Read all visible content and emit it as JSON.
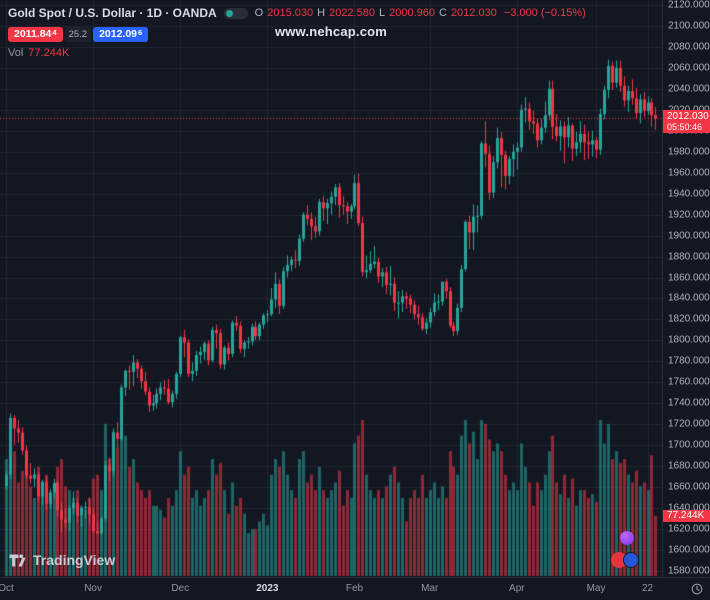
{
  "header": {
    "symbol_title": "Gold Spot / U.S. Dollar · 1D · OANDA",
    "ohlc": {
      "o_label": "O",
      "o": "2015.030",
      "h_label": "H",
      "h": "2022.580",
      "l_label": "L",
      "l": "2000.960",
      "c_label": "C",
      "c": "2012.030",
      "change": "−3.000 (−0.15%)"
    },
    "trade": {
      "sell_main": "2011.84",
      "sell_sup": "4",
      "spread": "25.2",
      "buy_main": "2012.09",
      "buy_sup": "6"
    },
    "volume_row": {
      "label": "Vol",
      "value": "77.244K"
    }
  },
  "watermark": "www.nehcap.com",
  "branding": {
    "logo_text": "TradingView"
  },
  "price_axis": {
    "labels": [
      "2120.000",
      "2100.000",
      "2080.000",
      "2060.000",
      "2040.000",
      "2020.000",
      "2000.000",
      "1980.000",
      "1960.000",
      "1940.000",
      "1920.000",
      "1900.000",
      "1880.000",
      "1860.000",
      "1840.000",
      "1820.000",
      "1800.000",
      "1780.000",
      "1760.000",
      "1740.000",
      "1720.000",
      "1700.000",
      "1680.000",
      "1660.000",
      "1640.000",
      "1620.000",
      "1600.000",
      "1580.000"
    ],
    "current_price": "2012.030",
    "countdown": "05:50:46",
    "volume_label": "77.244K"
  },
  "time_axis": {
    "labels": [
      {
        "text": "Oct",
        "index": 0,
        "major": false
      },
      {
        "text": "Nov",
        "index": 22,
        "major": false
      },
      {
        "text": "Dec",
        "index": 44,
        "major": false
      },
      {
        "text": "2023",
        "index": 66,
        "major": true
      },
      {
        "text": "Feb",
        "index": 88,
        "major": false
      },
      {
        "text": "Mar",
        "index": 107,
        "major": false
      },
      {
        "text": "Apr",
        "index": 129,
        "major": false
      },
      {
        "text": "May",
        "index": 149,
        "major": false
      },
      {
        "text": "22",
        "index": 162,
        "major": false
      }
    ]
  },
  "chart_data": {
    "type": "candlestick",
    "title": "Gold Spot / U.S. Dollar",
    "symbol": "XAUUSD",
    "exchange": "OANDA",
    "timeframe": "1D",
    "x_range": "Oct 2022 – May 2023",
    "ylim": [
      1580,
      2120
    ],
    "price_gridlines": [
      2120,
      2100,
      2080,
      2060,
      2040,
      2020,
      2000,
      1980,
      1960,
      1940,
      1920,
      1900,
      1880,
      1860,
      1840,
      1820,
      1800,
      1780,
      1760,
      1740,
      1720,
      1700,
      1680,
      1660,
      1640,
      1620,
      1600,
      1580
    ],
    "last_price": 2012.03,
    "last_volume_k": 77.244,
    "ohlc_last": {
      "open": 2015.03,
      "high": 2022.58,
      "low": 2000.96,
      "close": 2012.03,
      "change": -3.0,
      "change_pct": -0.15
    },
    "colors": {
      "background": "#131722",
      "up": "#26a69a",
      "down": "#f23645",
      "vol_up": "rgba(38,166,154,0.55)",
      "vol_down": "rgba(242,54,69,0.55)",
      "grid": "rgba(54,58,69,0.45)",
      "last_price_line": "#f23645",
      "buy": "#2962ff",
      "sell": "#f23645"
    },
    "columns": [
      "open",
      "high",
      "low",
      "close",
      "volume_k"
    ],
    "candles": [
      [
        1661,
        1675,
        1658,
        1672,
        150
      ],
      [
        1672,
        1730,
        1668,
        1726,
        185
      ],
      [
        1726,
        1729,
        1700,
        1716,
        160
      ],
      [
        1716,
        1724,
        1702,
        1712,
        120
      ],
      [
        1712,
        1717,
        1691,
        1695,
        135
      ],
      [
        1695,
        1700,
        1668,
        1671,
        150
      ],
      [
        1671,
        1683,
        1663,
        1668,
        115
      ],
      [
        1668,
        1678,
        1660,
        1672,
        100
      ],
      [
        1672,
        1674,
        1646,
        1651,
        140
      ],
      [
        1651,
        1667,
        1643,
        1665,
        120
      ],
      [
        1665,
        1670,
        1638,
        1644,
        130
      ],
      [
        1644,
        1658,
        1640,
        1655,
        105
      ],
      [
        1655,
        1668,
        1649,
        1664,
        110
      ],
      [
        1664,
        1666,
        1632,
        1638,
        140
      ],
      [
        1638,
        1645,
        1617,
        1629,
        150
      ],
      [
        1629,
        1640,
        1621,
        1626,
        115
      ],
      [
        1626,
        1642,
        1618,
        1640,
        110
      ],
      [
        1640,
        1656,
        1634,
        1645,
        100
      ],
      [
        1645,
        1650,
        1626,
        1633,
        110
      ],
      [
        1633,
        1641,
        1622,
        1640,
        90
      ],
      [
        1640,
        1646,
        1630,
        1641,
        85
      ],
      [
        1641,
        1650,
        1625,
        1634,
        100
      ],
      [
        1634,
        1640,
        1616,
        1618,
        125
      ],
      [
        1618,
        1628,
        1615,
        1616,
        130
      ],
      [
        1616,
        1632,
        1614,
        1630,
        110
      ],
      [
        1630,
        1685,
        1628,
        1681,
        195
      ],
      [
        1681,
        1688,
        1666,
        1675,
        150
      ],
      [
        1675,
        1716,
        1670,
        1712,
        185
      ],
      [
        1712,
        1722,
        1698,
        1706,
        165
      ],
      [
        1706,
        1758,
        1704,
        1755,
        200
      ],
      [
        1755,
        1772,
        1747,
        1771,
        180
      ],
      [
        1771,
        1776,
        1753,
        1770,
        140
      ],
      [
        1770,
        1786,
        1756,
        1779,
        150
      ],
      [
        1779,
        1782,
        1764,
        1773,
        120
      ],
      [
        1773,
        1776,
        1754,
        1761,
        110
      ],
      [
        1761,
        1770,
        1748,
        1751,
        100
      ],
      [
        1751,
        1755,
        1732,
        1738,
        110
      ],
      [
        1738,
        1748,
        1733,
        1740,
        90
      ],
      [
        1740,
        1754,
        1735,
        1749,
        90
      ],
      [
        1749,
        1760,
        1743,
        1755,
        85
      ],
      [
        1755,
        1762,
        1748,
        1754,
        75
      ],
      [
        1754,
        1763,
        1739,
        1741,
        100
      ],
      [
        1741,
        1752,
        1736,
        1749,
        90
      ],
      [
        1749,
        1770,
        1744,
        1768,
        110
      ],
      [
        1768,
        1804,
        1765,
        1803,
        160
      ],
      [
        1803,
        1810,
        1784,
        1798,
        130
      ],
      [
        1798,
        1801,
        1765,
        1768,
        140
      ],
      [
        1768,
        1779,
        1761,
        1771,
        100
      ],
      [
        1771,
        1790,
        1766,
        1786,
        110
      ],
      [
        1786,
        1794,
        1778,
        1789,
        90
      ],
      [
        1789,
        1799,
        1781,
        1797,
        100
      ],
      [
        1797,
        1800,
        1776,
        1781,
        110
      ],
      [
        1781,
        1813,
        1779,
        1810,
        150
      ],
      [
        1810,
        1815,
        1792,
        1807,
        130
      ],
      [
        1807,
        1811,
        1773,
        1777,
        145
      ],
      [
        1777,
        1795,
        1772,
        1793,
        110
      ],
      [
        1793,
        1798,
        1781,
        1787,
        80
      ],
      [
        1787,
        1819,
        1784,
        1817,
        120
      ],
      [
        1817,
        1823,
        1809,
        1814,
        90
      ],
      [
        1814,
        1818,
        1788,
        1792,
        100
      ],
      [
        1792,
        1800,
        1784,
        1798,
        80
      ],
      [
        1798,
        1803,
        1792,
        1799,
        55
      ],
      [
        1799,
        1816,
        1795,
        1813,
        60
      ],
      [
        1813,
        1818,
        1800,
        1804,
        60
      ],
      [
        1804,
        1817,
        1800,
        1815,
        70
      ],
      [
        1815,
        1826,
        1811,
        1824,
        80
      ],
      [
        1824,
        1829,
        1817,
        1825,
        65
      ],
      [
        1825,
        1850,
        1823,
        1839,
        130
      ],
      [
        1839,
        1865,
        1831,
        1854,
        150
      ],
      [
        1854,
        1858,
        1825,
        1833,
        140
      ],
      [
        1833,
        1870,
        1830,
        1866,
        160
      ],
      [
        1866,
        1881,
        1860,
        1872,
        130
      ],
      [
        1872,
        1880,
        1866,
        1877,
        110
      ],
      [
        1877,
        1886,
        1869,
        1876,
        100
      ],
      [
        1876,
        1901,
        1871,
        1897,
        150
      ],
      [
        1897,
        1922,
        1894,
        1920,
        160
      ],
      [
        1920,
        1929,
        1910,
        1916,
        120
      ],
      [
        1916,
        1922,
        1896,
        1909,
        130
      ],
      [
        1909,
        1918,
        1898,
        1904,
        110
      ],
      [
        1904,
        1935,
        1900,
        1932,
        140
      ],
      [
        1932,
        1938,
        1914,
        1926,
        110
      ],
      [
        1926,
        1935,
        1911,
        1931,
        100
      ],
      [
        1931,
        1942,
        1920,
        1937,
        110
      ],
      [
        1937,
        1949,
        1929,
        1946,
        120
      ],
      [
        1946,
        1950,
        1917,
        1929,
        135
      ],
      [
        1929,
        1938,
        1920,
        1928,
        90
      ],
      [
        1928,
        1932,
        1911,
        1923,
        110
      ],
      [
        1923,
        1930,
        1916,
        1928,
        100
      ],
      [
        1928,
        1958,
        1925,
        1950,
        170
      ],
      [
        1950,
        1959,
        1909,
        1912,
        180
      ],
      [
        1912,
        1918,
        1861,
        1865,
        200
      ],
      [
        1865,
        1881,
        1859,
        1867,
        130
      ],
      [
        1867,
        1885,
        1864,
        1873,
        110
      ],
      [
        1873,
        1890,
        1869,
        1875,
        100
      ],
      [
        1875,
        1879,
        1855,
        1861,
        110
      ],
      [
        1861,
        1869,
        1851,
        1865,
        100
      ],
      [
        1865,
        1870,
        1844,
        1853,
        115
      ],
      [
        1853,
        1871,
        1843,
        1854,
        130
      ],
      [
        1854,
        1860,
        1828,
        1836,
        140
      ],
      [
        1836,
        1847,
        1821,
        1836,
        120
      ],
      [
        1836,
        1848,
        1827,
        1842,
        100
      ],
      [
        1842,
        1846,
        1830,
        1840,
        70
      ],
      [
        1840,
        1844,
        1826,
        1834,
        100
      ],
      [
        1834,
        1838,
        1820,
        1825,
        110
      ],
      [
        1825,
        1833,
        1815,
        1822,
        100
      ],
      [
        1822,
        1826,
        1809,
        1811,
        130
      ],
      [
        1811,
        1821,
        1806,
        1817,
        100
      ],
      [
        1817,
        1831,
        1812,
        1827,
        110
      ],
      [
        1827,
        1845,
        1823,
        1836,
        120
      ],
      [
        1836,
        1844,
        1829,
        1837,
        100
      ],
      [
        1837,
        1856,
        1833,
        1856,
        115
      ],
      [
        1856,
        1859,
        1840,
        1847,
        100
      ],
      [
        1847,
        1851,
        1812,
        1814,
        160
      ],
      [
        1814,
        1818,
        1804,
        1809,
        140
      ],
      [
        1809,
        1835,
        1805,
        1831,
        130
      ],
      [
        1831,
        1872,
        1827,
        1868,
        180
      ],
      [
        1868,
        1915,
        1866,
        1913,
        200
      ],
      [
        1913,
        1919,
        1887,
        1903,
        170
      ],
      [
        1903,
        1930,
        1886,
        1918,
        185
      ],
      [
        1918,
        1929,
        1903,
        1919,
        150
      ],
      [
        1919,
        1990,
        1916,
        1988,
        200
      ],
      [
        1988,
        2009,
        1965,
        1978,
        195
      ],
      [
        1978,
        1986,
        1934,
        1941,
        175
      ],
      [
        1941,
        1976,
        1936,
        1970,
        160
      ],
      [
        1970,
        2003,
        1964,
        1993,
        170
      ],
      [
        1993,
        1999,
        1946,
        1977,
        160
      ],
      [
        1977,
        1981,
        1944,
        1957,
        130
      ],
      [
        1957,
        1976,
        1949,
        1973,
        110
      ],
      [
        1973,
        1987,
        1956,
        1980,
        120
      ],
      [
        1980,
        1989,
        1963,
        1984,
        110
      ],
      [
        1984,
        2025,
        1980,
        2020,
        170
      ],
      [
        2020,
        2032,
        2008,
        2021,
        140
      ],
      [
        2021,
        2027,
        2001,
        2009,
        120
      ],
      [
        2009,
        2019,
        1997,
        2007,
        90
      ],
      [
        2007,
        2012,
        1984,
        1991,
        120
      ],
      [
        1991,
        2011,
        1987,
        2003,
        110
      ],
      [
        2003,
        2028,
        1998,
        2015,
        130
      ],
      [
        2015,
        2048,
        2010,
        2040,
        160
      ],
      [
        2040,
        2048,
        1992,
        2004,
        180
      ],
      [
        2004,
        2016,
        1990,
        1995,
        120
      ],
      [
        1995,
        2010,
        1981,
        2004,
        105
      ],
      [
        2004,
        2009,
        1969,
        1994,
        130
      ],
      [
        1994,
        2013,
        1984,
        2005,
        100
      ],
      [
        2005,
        2007,
        1971,
        1983,
        125
      ],
      [
        1983,
        1999,
        1976,
        1989,
        90
      ],
      [
        1989,
        2009,
        1979,
        1997,
        110
      ],
      [
        1997,
        2006,
        1972,
        1989,
        110
      ],
      [
        1989,
        1999,
        1973,
        1987,
        100
      ],
      [
        1987,
        2000,
        1975,
        1991,
        105
      ],
      [
        1991,
        1994,
        1974,
        1982,
        95
      ],
      [
        1982,
        2021,
        1977,
        2016,
        200
      ],
      [
        2016,
        2043,
        2011,
        2039,
        170
      ],
      [
        2039,
        2068,
        2031,
        2062,
        195
      ],
      [
        2062,
        2066,
        2039,
        2046,
        150
      ],
      [
        2046,
        2067,
        2041,
        2060,
        160
      ],
      [
        2060,
        2067,
        2037,
        2043,
        145
      ],
      [
        2043,
        2052,
        2023,
        2029,
        150
      ],
      [
        2029,
        2043,
        2018,
        2038,
        130
      ],
      [
        2038,
        2049,
        2025,
        2031,
        120
      ],
      [
        2031,
        2041,
        2011,
        2017,
        135
      ],
      [
        2017,
        2035,
        2007,
        2030,
        115
      ],
      [
        2030,
        2037,
        2013,
        2019,
        120
      ],
      [
        2019,
        2033,
        2015,
        2027,
        110
      ],
      [
        2027,
        2031,
        2004,
        2015,
        155
      ],
      [
        2015.03,
        2022.58,
        2000.96,
        2012.03,
        77.244
      ]
    ]
  }
}
